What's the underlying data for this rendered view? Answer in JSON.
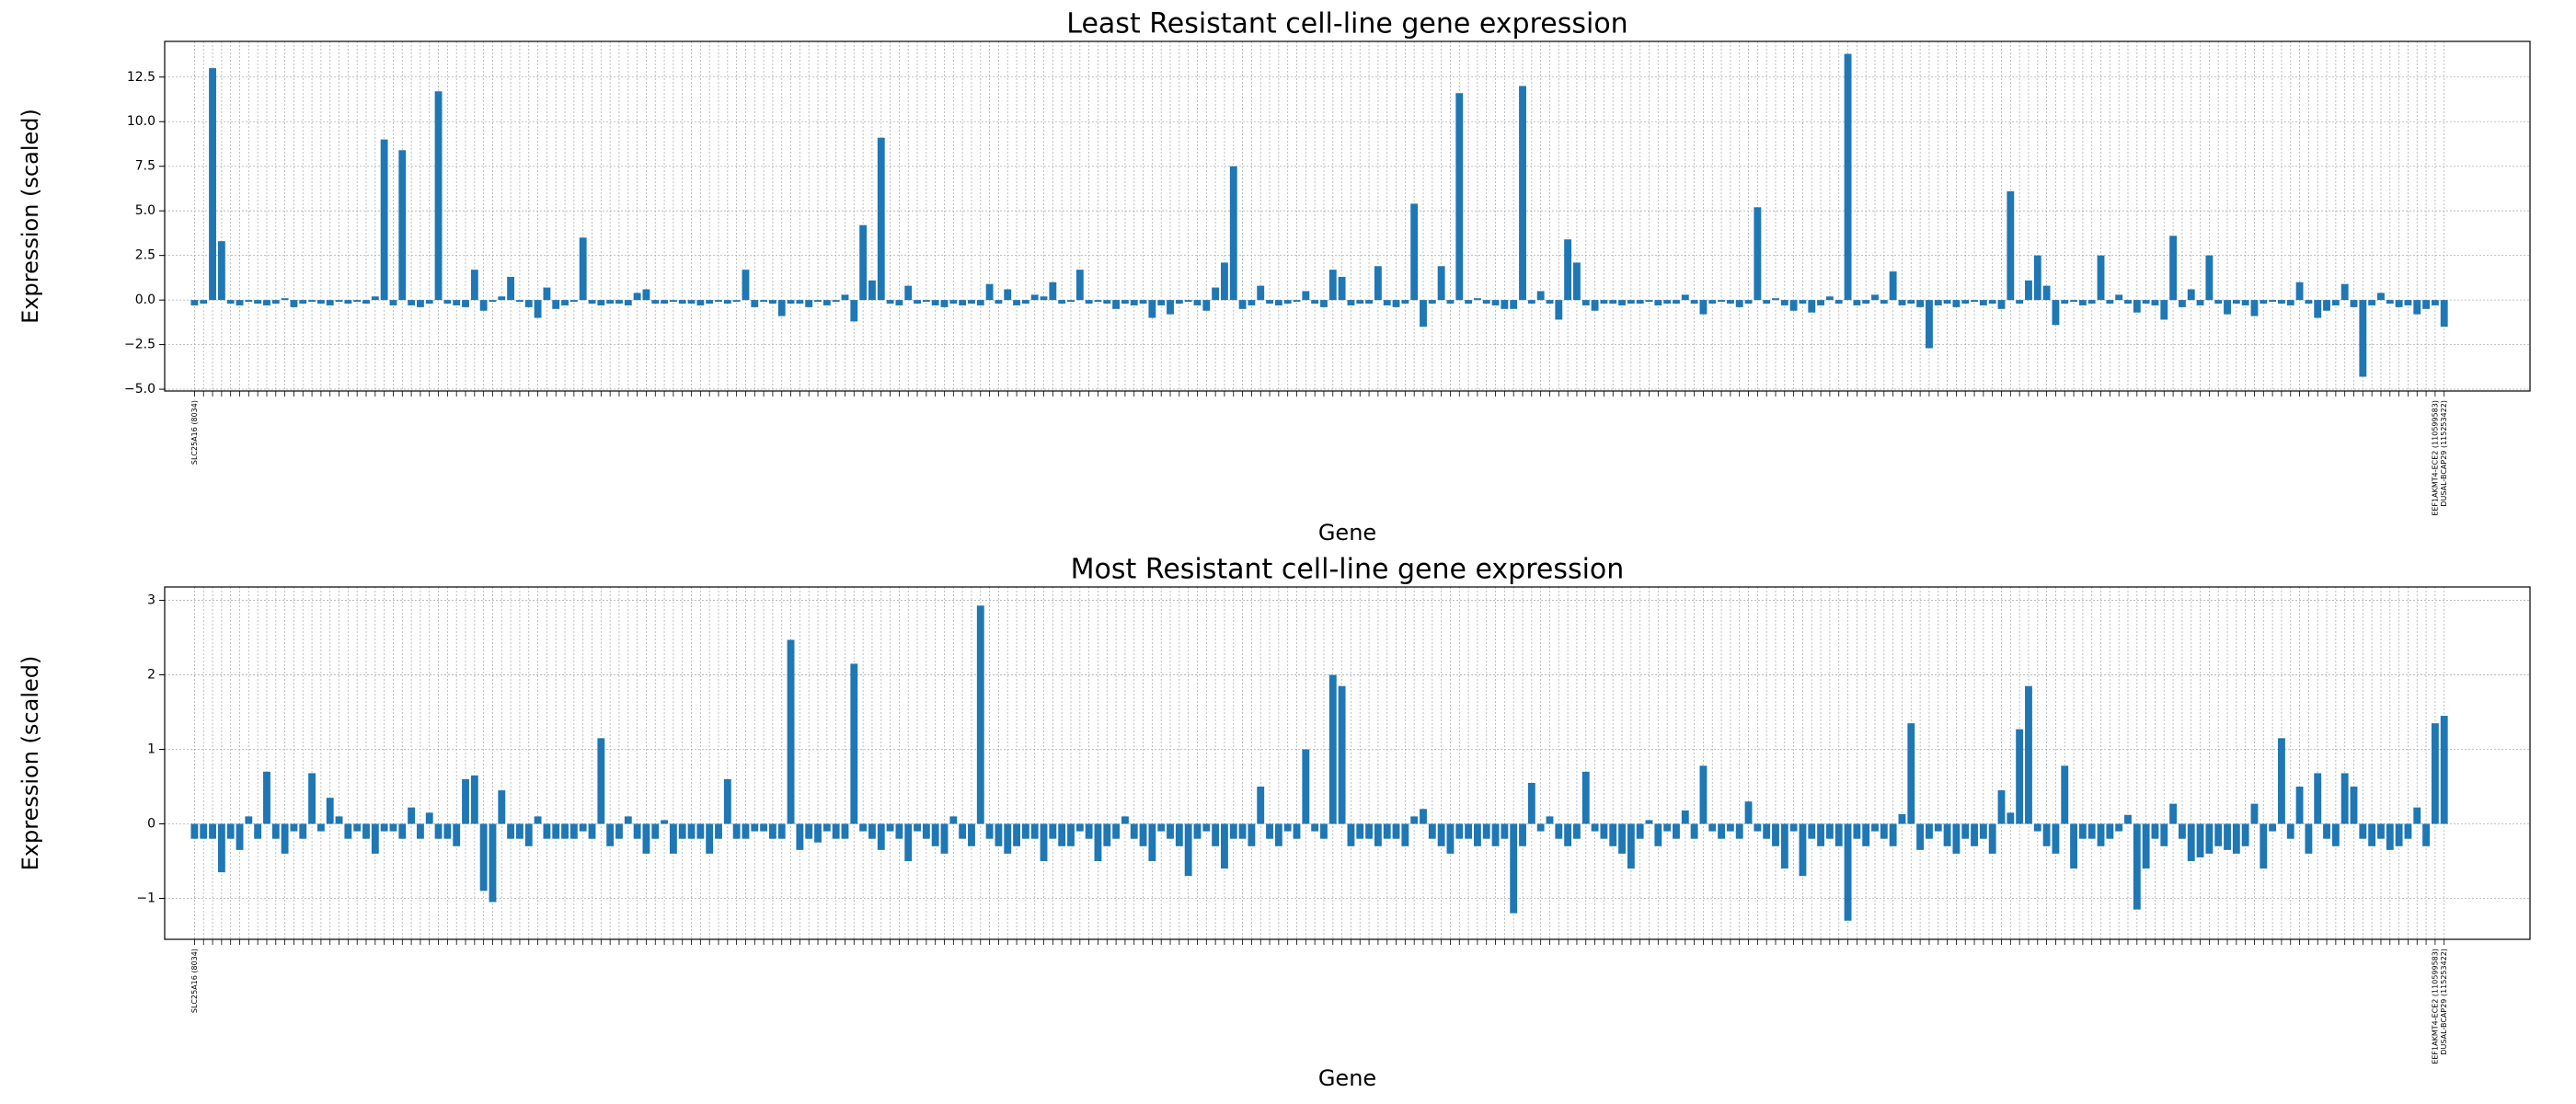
{
  "chart_data": [
    {
      "type": "bar",
      "title": "Least Resistant cell-line gene expression",
      "x_label": "Gene",
      "y_label": "Expression (scaled)",
      "color": "#1f77b4",
      "grid": true,
      "ylim": [
        -5.1,
        14.5
      ],
      "yticks": [
        {
          "value": -5,
          "label": "−5.0"
        },
        {
          "value": -2.5,
          "label": "−2.5"
        },
        {
          "value": 0,
          "label": "0.0"
        },
        2.5,
        {
          "value": 5,
          "label": "5.0"
        },
        7.5,
        {
          "value": 10,
          "label": "10.0"
        },
        12.5
      ],
      "categories": [
        "SLC25A16 (8034)",
        null,
        null,
        null,
        null,
        null,
        null,
        null,
        null,
        null,
        null,
        null,
        null,
        null,
        null,
        null,
        null,
        null,
        null,
        null,
        null,
        null,
        null,
        null,
        null,
        null,
        null,
        null,
        null,
        null,
        null,
        null,
        null,
        null,
        null,
        null,
        null,
        null,
        null,
        null,
        null,
        null,
        null,
        null,
        null,
        null,
        null,
        null,
        null,
        null,
        null,
        null,
        null,
        null,
        null,
        null,
        null,
        null,
        null,
        null,
        null,
        null,
        null,
        null,
        null,
        null,
        null,
        null,
        null,
        null,
        null,
        null,
        null,
        null,
        null,
        null,
        null,
        null,
        null,
        null,
        null,
        null,
        null,
        null,
        null,
        null,
        null,
        null,
        null,
        null,
        null,
        null,
        null,
        null,
        null,
        null,
        null,
        null,
        null,
        null,
        null,
        null,
        null,
        null,
        null,
        null,
        null,
        null,
        null,
        null,
        null,
        null,
        null,
        null,
        null,
        null,
        null,
        null,
        null,
        null,
        null,
        null,
        null,
        null,
        null,
        null,
        null,
        null,
        null,
        null,
        null,
        null,
        null,
        null,
        null,
        null,
        null,
        null,
        null,
        null,
        null,
        null,
        null,
        null,
        null,
        null,
        null,
        null,
        null,
        null,
        null,
        null,
        null,
        null,
        null,
        null,
        null,
        null,
        null,
        null,
        null,
        null,
        null,
        null,
        null,
        null,
        null,
        null,
        null,
        null,
        null,
        null,
        null,
        null,
        null,
        null,
        null,
        null,
        null,
        null,
        null,
        null,
        null,
        null,
        null,
        null,
        null,
        null,
        null,
        null,
        null,
        null,
        null,
        null,
        null,
        null,
        null,
        null,
        null,
        null,
        null,
        null,
        null,
        null,
        null,
        null,
        null,
        null,
        null,
        null,
        null,
        null,
        null,
        null,
        null,
        null,
        null,
        null,
        null,
        null,
        null,
        null,
        null,
        null,
        null,
        null,
        null,
        null,
        null,
        null,
        null,
        null,
        null,
        null,
        null,
        null,
        null,
        null,
        null,
        null,
        null,
        null,
        null,
        null,
        null,
        null,
        null,
        null,
        "EEF1AKMT4-ECE2 (110599583)",
        "DUSAL-BCAP29 (115253422)"
      ],
      "values": [
        -0.3,
        -0.2,
        13.0,
        3.3,
        -0.2,
        -0.3,
        -0.1,
        -0.2,
        -0.3,
        -0.2,
        0.1,
        -0.4,
        -0.2,
        -0.1,
        -0.2,
        -0.3,
        -0.1,
        -0.2,
        -0.1,
        -0.2,
        0.2,
        9.0,
        -0.3,
        8.4,
        -0.3,
        -0.4,
        -0.2,
        11.7,
        -0.2,
        -0.3,
        -0.4,
        1.7,
        -0.6,
        -0.1,
        0.2,
        1.3,
        -0.1,
        -0.4,
        -1.0,
        0.7,
        -0.5,
        -0.3,
        -0.1,
        3.5,
        -0.2,
        -0.3,
        -0.2,
        -0.2,
        -0.3,
        0.4,
        0.6,
        -0.2,
        -0.2,
        -0.1,
        -0.2,
        -0.2,
        -0.3,
        -0.2,
        -0.1,
        -0.2,
        -0.1,
        1.7,
        -0.4,
        -0.1,
        -0.2,
        -0.9,
        -0.2,
        -0.2,
        -0.4,
        -0.1,
        -0.3,
        -0.1,
        0.3,
        -1.2,
        4.2,
        1.1,
        9.1,
        -0.2,
        -0.3,
        0.8,
        -0.2,
        -0.1,
        -0.3,
        -0.4,
        -0.2,
        -0.3,
        -0.2,
        -0.3,
        0.9,
        -0.2,
        0.6,
        -0.3,
        -0.2,
        0.3,
        0.2,
        1.0,
        -0.2,
        -0.1,
        1.7,
        -0.2,
        -0.1,
        -0.2,
        -0.5,
        -0.2,
        -0.3,
        -0.2,
        -1.0,
        -0.3,
        -0.8,
        -0.2,
        -0.1,
        -0.3,
        -0.6,
        0.7,
        2.1,
        7.5,
        -0.5,
        -0.3,
        0.8,
        -0.2,
        -0.3,
        -0.2,
        -0.1,
        0.5,
        -0.2,
        -0.4,
        1.7,
        1.3,
        -0.3,
        -0.2,
        -0.2,
        1.9,
        -0.3,
        -0.4,
        -0.2,
        5.4,
        -1.5,
        -0.2,
        1.9,
        -0.2,
        11.6,
        -0.2,
        0.1,
        -0.2,
        -0.3,
        -0.5,
        -0.5,
        12.0,
        -0.2,
        0.5,
        -0.2,
        -1.1,
        3.4,
        2.1,
        -0.3,
        -0.6,
        -0.2,
        -0.2,
        -0.3,
        -0.2,
        -0.2,
        -0.1,
        -0.3,
        -0.2,
        -0.2,
        0.3,
        -0.2,
        -0.8,
        -0.2,
        -0.1,
        -0.2,
        -0.4,
        -0.2,
        5.2,
        -0.2,
        0.1,
        -0.3,
        -0.6,
        -0.2,
        -0.7,
        -0.3,
        0.2,
        -0.2,
        13.8,
        -0.3,
        -0.2,
        0.3,
        -0.2,
        1.6,
        -0.3,
        -0.2,
        -0.4,
        -2.7,
        -0.3,
        -0.2,
        -0.4,
        -0.2,
        -0.1,
        -0.3,
        -0.2,
        -0.5,
        6.1,
        -0.2,
        1.1,
        2.5,
        0.8,
        -1.4,
        -0.2,
        -0.1,
        -0.3,
        -0.2,
        2.5,
        -0.2,
        0.3,
        -0.2,
        -0.7,
        -0.2,
        -0.3,
        -1.1,
        3.6,
        -0.4,
        0.6,
        -0.3,
        2.5,
        -0.2,
        -0.8,
        -0.2,
        -0.3,
        -0.9,
        -0.2,
        -0.1,
        -0.2,
        -0.3,
        1.0,
        -0.2,
        -1.0,
        -0.6,
        -0.3,
        0.9,
        -0.4,
        -4.3,
        -0.3,
        0.4,
        -0.2,
        -0.4,
        -0.3,
        -0.8,
        -0.5,
        -0.3,
        -1.5
      ]
    },
    {
      "type": "bar",
      "title": "Most Resistant cell-line gene expression",
      "x_label": "Gene",
      "y_label": "Expression (scaled)",
      "color": "#1f77b4",
      "grid": true,
      "ylim": [
        -1.55,
        3.18
      ],
      "yticks": [
        {
          "value": -1,
          "label": "−1"
        },
        0,
        1,
        2,
        3
      ],
      "categories": [
        "SLC25A16 (8034)",
        null,
        null,
        null,
        null,
        null,
        null,
        null,
        null,
        null,
        null,
        null,
        null,
        null,
        null,
        null,
        null,
        null,
        null,
        null,
        null,
        null,
        null,
        null,
        null,
        null,
        null,
        null,
        null,
        null,
        null,
        null,
        null,
        null,
        null,
        null,
        null,
        null,
        null,
        null,
        null,
        null,
        null,
        null,
        null,
        null,
        null,
        null,
        null,
        null,
        null,
        null,
        null,
        null,
        null,
        null,
        null,
        null,
        null,
        null,
        null,
        null,
        null,
        null,
        null,
        null,
        null,
        null,
        null,
        null,
        null,
        null,
        null,
        null,
        null,
        null,
        null,
        null,
        null,
        null,
        null,
        null,
        null,
        null,
        null,
        null,
        null,
        null,
        null,
        null,
        null,
        null,
        null,
        null,
        null,
        null,
        null,
        null,
        null,
        null,
        null,
        null,
        null,
        null,
        null,
        null,
        null,
        null,
        null,
        null,
        null,
        null,
        null,
        null,
        null,
        null,
        null,
        null,
        null,
        null,
        null,
        null,
        null,
        null,
        null,
        null,
        null,
        null,
        null,
        null,
        null,
        null,
        null,
        null,
        null,
        null,
        null,
        null,
        null,
        null,
        null,
        null,
        null,
        null,
        null,
        null,
        null,
        null,
        null,
        null,
        null,
        null,
        null,
        null,
        null,
        null,
        null,
        null,
        null,
        null,
        null,
        null,
        null,
        null,
        null,
        null,
        null,
        null,
        null,
        null,
        null,
        null,
        null,
        null,
        null,
        null,
        null,
        null,
        null,
        null,
        null,
        null,
        null,
        null,
        null,
        null,
        null,
        null,
        null,
        null,
        null,
        null,
        null,
        null,
        null,
        null,
        null,
        null,
        null,
        null,
        null,
        null,
        null,
        null,
        null,
        null,
        null,
        null,
        null,
        null,
        null,
        null,
        null,
        null,
        null,
        null,
        null,
        null,
        null,
        null,
        null,
        null,
        null,
        null,
        null,
        null,
        null,
        null,
        null,
        null,
        null,
        null,
        null,
        null,
        null,
        null,
        null,
        null,
        null,
        null,
        null,
        null,
        null,
        null,
        null,
        null,
        null,
        null,
        "EEF1AKMT4-ECE2 (110599583)",
        "DUSAL-BCAP29 (115253422)"
      ],
      "values": [
        -0.2,
        -0.2,
        -0.2,
        -0.65,
        -0.2,
        -0.35,
        0.1,
        -0.2,
        0.7,
        -0.2,
        -0.4,
        -0.1,
        -0.2,
        0.68,
        -0.1,
        0.35,
        0.1,
        -0.2,
        -0.1,
        -0.2,
        -0.4,
        -0.1,
        -0.1,
        -0.2,
        0.22,
        -0.2,
        0.15,
        -0.2,
        -0.2,
        -0.3,
        0.6,
        0.65,
        -0.9,
        -1.05,
        0.45,
        -0.2,
        -0.2,
        -0.3,
        0.1,
        -0.2,
        -0.2,
        -0.2,
        -0.2,
        -0.1,
        -0.2,
        1.15,
        -0.3,
        -0.2,
        0.1,
        -0.2,
        -0.4,
        -0.2,
        0.05,
        -0.4,
        -0.2,
        -0.2,
        -0.2,
        -0.4,
        -0.2,
        0.6,
        -0.2,
        -0.2,
        -0.1,
        -0.1,
        -0.2,
        -0.2,
        2.47,
        -0.35,
        -0.2,
        -0.25,
        -0.1,
        -0.2,
        -0.2,
        2.15,
        -0.1,
        -0.2,
        -0.35,
        -0.1,
        -0.2,
        -0.5,
        -0.1,
        -0.2,
        -0.3,
        -0.4,
        0.1,
        -0.2,
        -0.3,
        2.93,
        -0.2,
        -0.3,
        -0.4,
        -0.3,
        -0.2,
        -0.2,
        -0.5,
        -0.2,
        -0.3,
        -0.3,
        -0.1,
        -0.2,
        -0.5,
        -0.3,
        -0.2,
        0.1,
        -0.2,
        -0.3,
        -0.5,
        -0.1,
        -0.2,
        -0.3,
        -0.7,
        -0.2,
        -0.1,
        -0.3,
        -0.6,
        -0.2,
        -0.2,
        -0.3,
        0.5,
        -0.2,
        -0.3,
        -0.1,
        -0.2,
        1.0,
        -0.1,
        -0.2,
        2.0,
        1.85,
        -0.3,
        -0.2,
        -0.2,
        -0.3,
        -0.2,
        -0.2,
        -0.3,
        0.1,
        0.2,
        -0.2,
        -0.3,
        -0.4,
        -0.2,
        -0.2,
        -0.3,
        -0.2,
        -0.3,
        -0.2,
        -1.2,
        -0.3,
        0.55,
        -0.1,
        0.1,
        -0.2,
        -0.3,
        -0.2,
        0.7,
        -0.1,
        -0.2,
        -0.3,
        -0.4,
        -0.6,
        -0.2,
        0.05,
        -0.3,
        -0.1,
        -0.2,
        0.18,
        -0.2,
        0.78,
        -0.1,
        -0.2,
        -0.1,
        -0.2,
        0.3,
        -0.1,
        -0.2,
        -0.3,
        -0.6,
        -0.1,
        -0.7,
        -0.2,
        -0.3,
        -0.2,
        -0.3,
        -1.3,
        -0.2,
        -0.3,
        -0.1,
        -0.2,
        -0.3,
        0.13,
        1.35,
        -0.35,
        -0.2,
        -0.1,
        -0.3,
        -0.4,
        -0.2,
        -0.3,
        -0.2,
        -0.4,
        0.45,
        0.15,
        1.27,
        1.85,
        -0.1,
        -0.3,
        -0.4,
        0.78,
        -0.6,
        -0.2,
        -0.2,
        -0.3,
        -0.2,
        -0.1,
        0.12,
        -1.15,
        -0.6,
        -0.2,
        -0.3,
        0.27,
        -0.2,
        -0.5,
        -0.45,
        -0.4,
        -0.3,
        -0.35,
        -0.4,
        -0.3,
        0.27,
        -0.6,
        -0.1,
        1.15,
        -0.2,
        0.5,
        -0.4,
        0.68,
        -0.2,
        -0.3,
        0.68,
        0.5,
        -0.2,
        -0.3,
        -0.2,
        -0.35,
        -0.3,
        -0.2,
        0.22,
        -0.3,
        1.35,
        1.45
      ]
    }
  ]
}
